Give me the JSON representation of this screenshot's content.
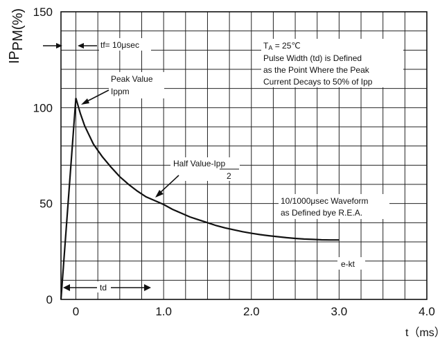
{
  "chart_data": {
    "type": "line",
    "title": "",
    "ylabel_main": "I",
    "ylabel_p1": "P",
    "ylabel_sub": "PM(%)",
    "xlabel": "t（ms）",
    "xlim": [
      -0.17,
      4.0
    ],
    "ylim": [
      0,
      150
    ],
    "x_ticks": [
      "0",
      "1.0",
      "2.0",
      "3.0",
      "4.0"
    ],
    "x_tick_values": [
      0,
      1.0,
      2.0,
      3.0,
      4.0
    ],
    "y_ticks": [
      "0",
      "50",
      "100",
      "150"
    ],
    "y_tick_values": [
      0,
      50,
      100,
      150
    ],
    "grid": true,
    "series": [
      {
        "x": [
          -0.17,
          0.0,
          0.05,
          0.1,
          0.2,
          0.3,
          0.4,
          0.5,
          0.6,
          0.7,
          0.8,
          0.9,
          1.0,
          1.1,
          1.2,
          1.3,
          1.4,
          1.5,
          1.6,
          1.7,
          1.8,
          1.9,
          2.0,
          2.1,
          2.2,
          2.3,
          2.4,
          2.5,
          2.6,
          2.7,
          2.8,
          2.9,
          3.0
        ],
        "y": [
          0,
          105,
          97,
          90.5,
          81,
          74.5,
          69,
          64,
          60,
          56.5,
          53.5,
          51.5,
          49.5,
          47,
          45,
          43,
          41.5,
          40,
          38.5,
          37.3,
          36.3,
          35.3,
          34.5,
          33.8,
          33.2,
          32.7,
          32.2,
          31.8,
          31.5,
          31.3,
          31.1,
          31.0,
          31.0
        ]
      }
    ],
    "annotations": {
      "tf": "tf= 10μsec",
      "ta_T": "T",
      "ta_A": "A",
      "ta_rest": " = 25℃",
      "pulse1": "Pulse Width (td) is Defined",
      "pulse2": "as the Point Where the Peak",
      "pulse3": "Current Decays to 50% of Ipp",
      "peak1": "Peak Value",
      "peak2": "Ippm",
      "half1": "Half Value-Ipp",
      "half2": "2",
      "wave1": "10/1000μsec Waveform",
      "wave2": "as Defined bye R.E.A.",
      "ekt": "e-kt",
      "td": "td"
    }
  }
}
